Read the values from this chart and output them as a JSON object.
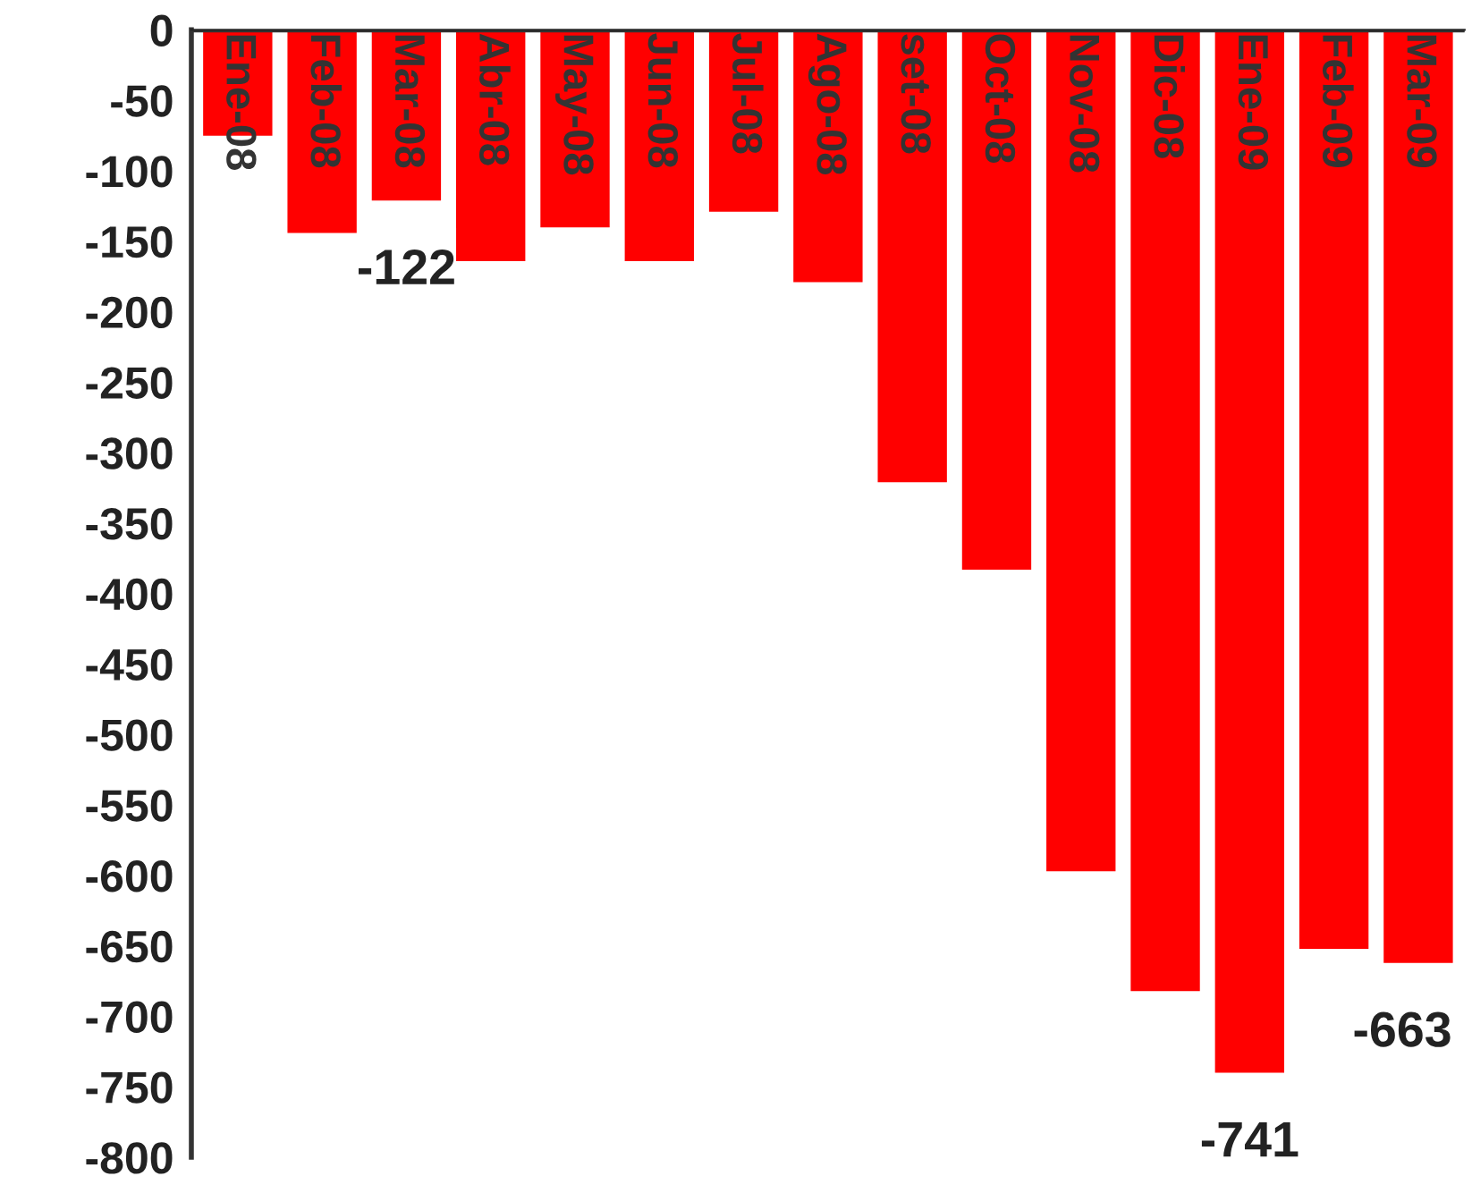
{
  "chart_data": {
    "type": "bar",
    "categories": [
      "Ene-08",
      "Feb-08",
      "Mar-08",
      "Abr-08",
      "May-08",
      "Jun-08",
      "Jul-08",
      "Ago-08",
      "set-08",
      "Oct-08",
      "Nov-08",
      "Dic-08",
      "Ene-09",
      "Feb-09",
      "Mar-09"
    ],
    "values": [
      -76,
      -145,
      -122,
      -165,
      -141,
      -165,
      -130,
      -180,
      -322,
      -384,
      -598,
      -683,
      -741,
      -653,
      -663
    ],
    "value_labels": [
      null,
      null,
      "-122",
      null,
      null,
      null,
      null,
      null,
      null,
      null,
      null,
      null,
      "-741",
      null,
      "-663"
    ],
    "color": "#ff0000",
    "ylim": [
      -800,
      0
    ],
    "yticks": [
      0,
      -50,
      -100,
      -150,
      -200,
      -250,
      -300,
      -350,
      -400,
      -450,
      -500,
      -550,
      -600,
      -650,
      -700,
      -750,
      -800
    ],
    "grid": false,
    "legend": false
  }
}
